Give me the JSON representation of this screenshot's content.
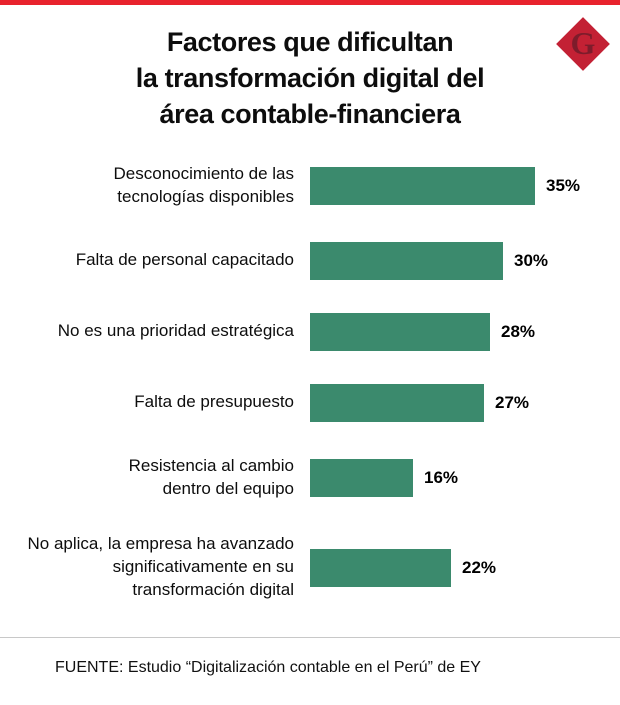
{
  "header": {
    "title": "Factores que dificultan\nla transformación digital del\nárea contable-financiera"
  },
  "logo": {
    "letter": "G"
  },
  "colors": {
    "bar": "#3b8a6d",
    "top_rule": "#e8222d",
    "logo_diamond": "#c32134",
    "logo_letter": "#7d1c2b",
    "divider": "#c8c8c8"
  },
  "chart_data": {
    "type": "bar",
    "orientation": "horizontal",
    "title": "Factores que dificultan la transformación digital del área contable-financiera",
    "categories": [
      "Desconocimiento de las\ntecnologías disponibles",
      "Falta de personal capacitado",
      "No es una prioridad estratégica",
      "Falta de presupuesto",
      "Resistencia al cambio\ndentro del equipo",
      "No aplica, la empresa ha avanzado\nsignificativamente en su\ntransformación digital"
    ],
    "values": [
      35,
      30,
      28,
      27,
      16,
      22
    ],
    "value_labels": [
      "35%",
      "30%",
      "28%",
      "27%",
      "16%",
      "22%"
    ],
    "xlabel": "",
    "ylabel": "",
    "xlim": [
      0,
      35
    ],
    "grid": false,
    "legend": false,
    "bar_color": "#3b8a6d"
  },
  "footer": {
    "source": "FUENTE: Estudio “Digitalización contable en el Perú” de EY"
  }
}
